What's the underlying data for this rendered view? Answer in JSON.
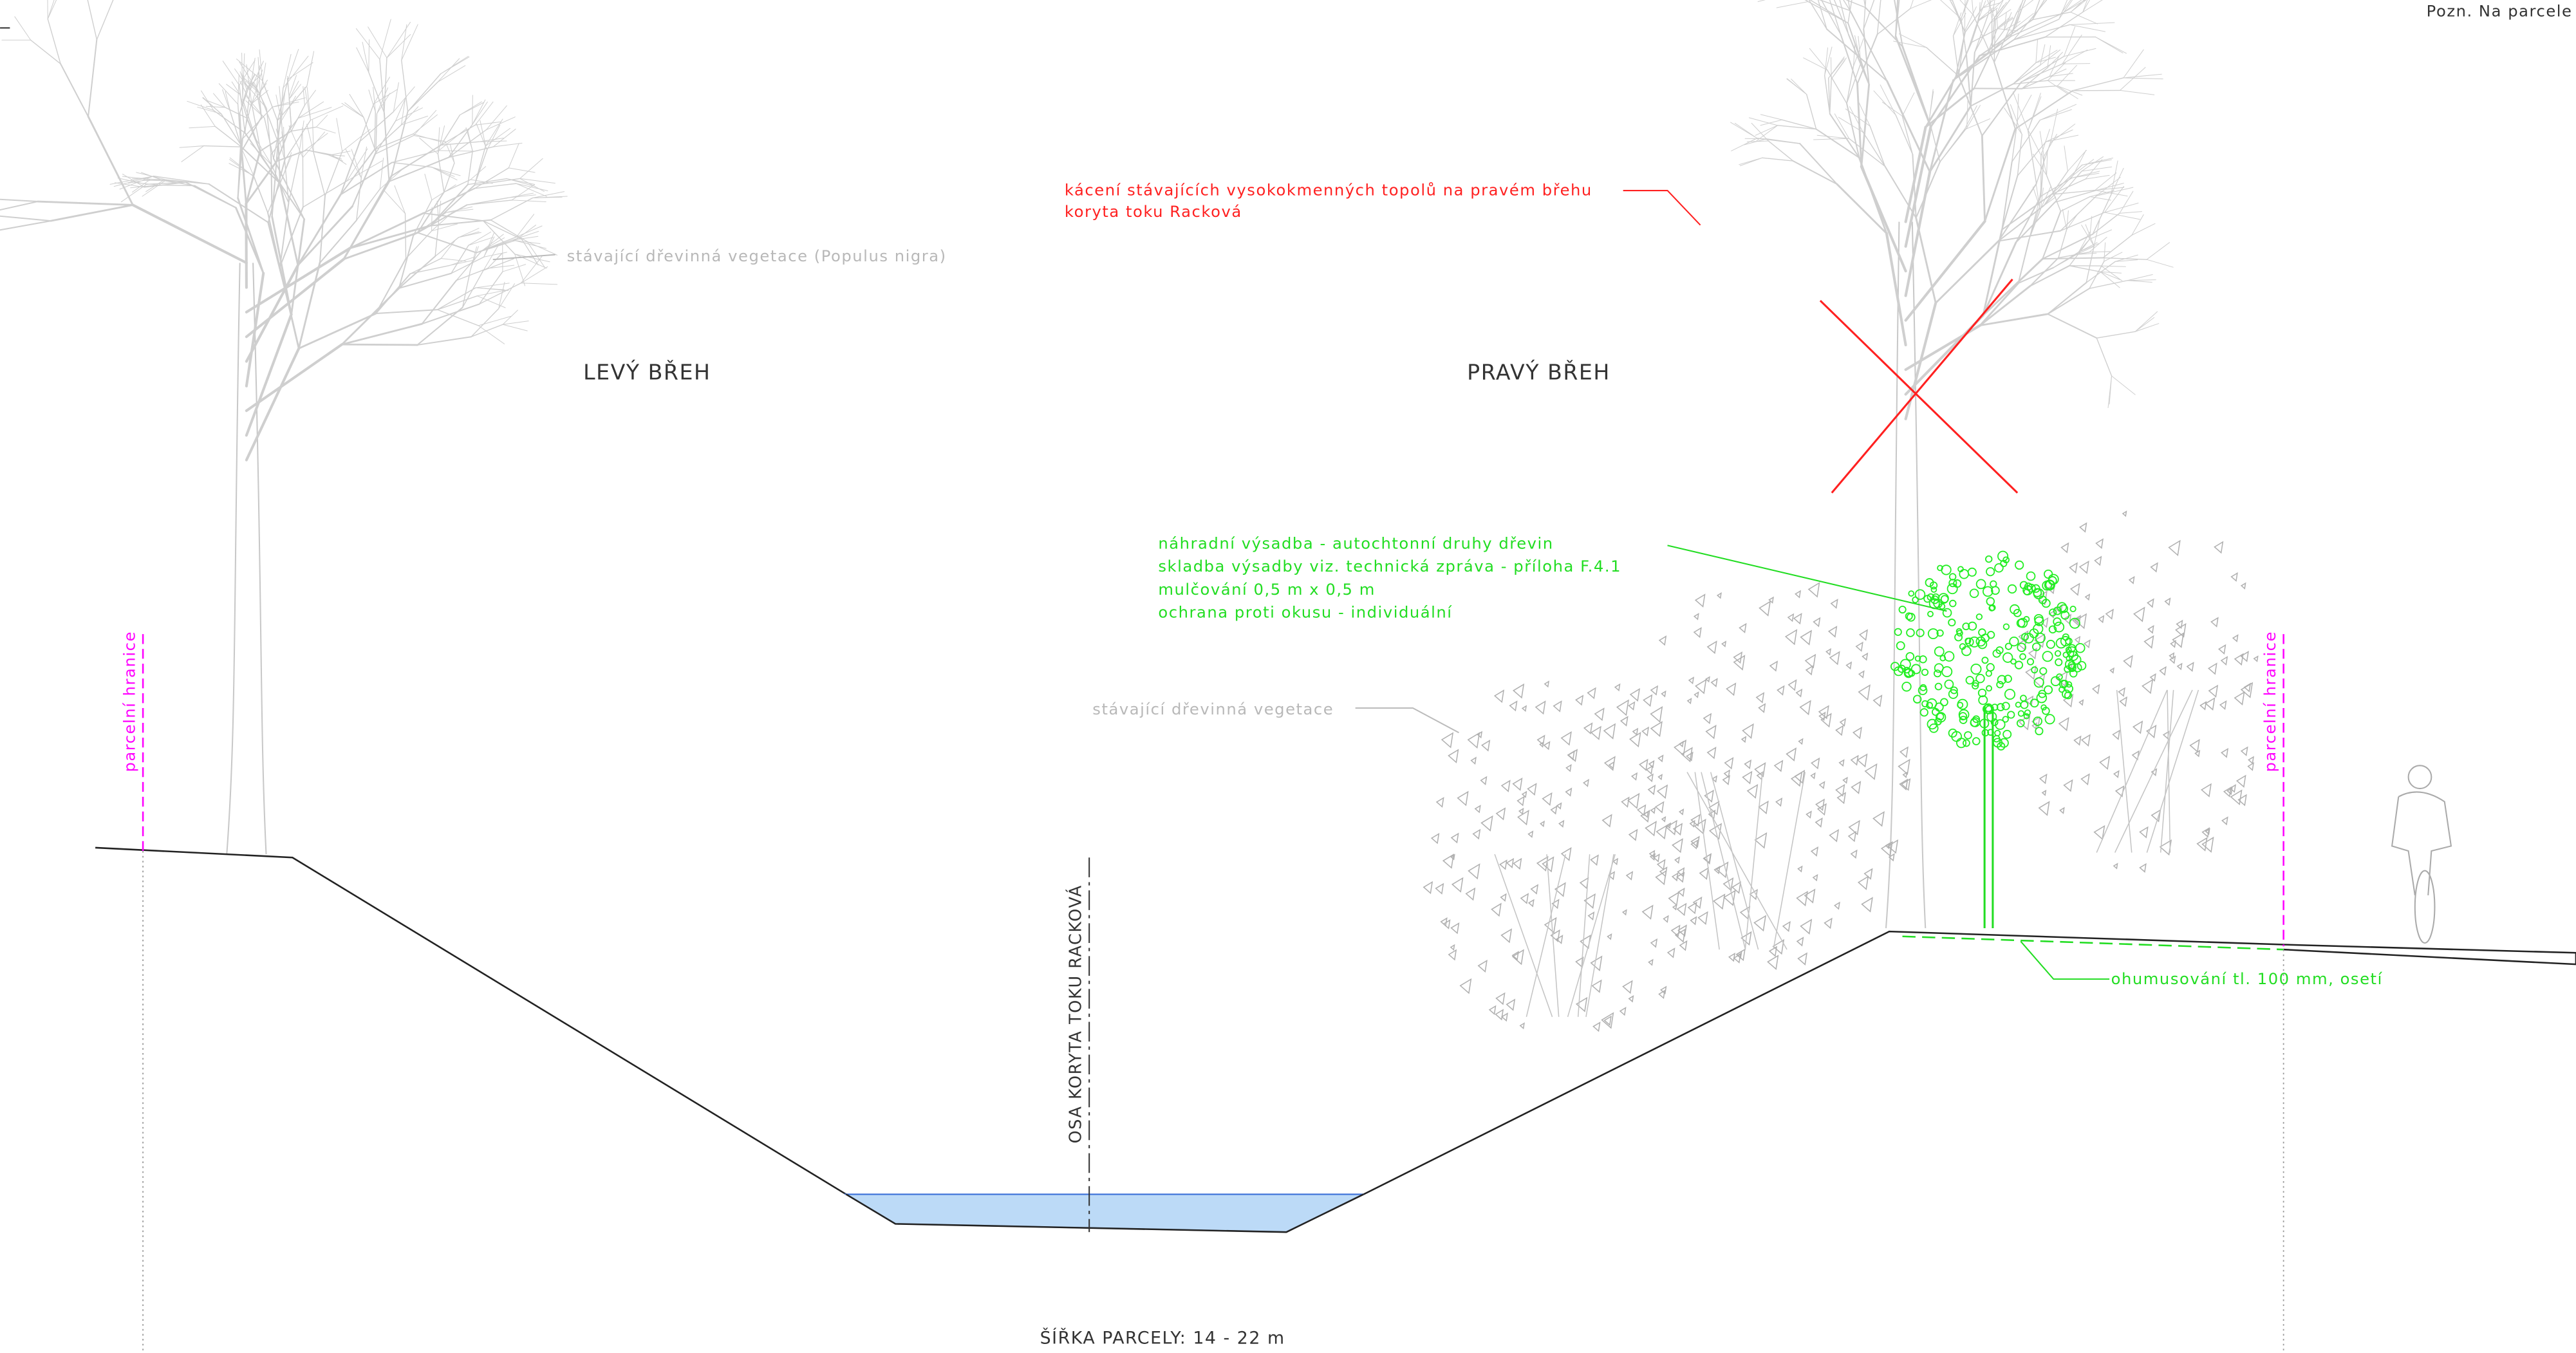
{
  "note": "Pozn. Na parcele",
  "labels": {
    "left_bank": "LEVÝ BŘEH",
    "right_bank": "PRAVÝ BŘEH",
    "existing_poplar": "stávající dřevinná vegetace (Populus nigra)",
    "existing_vegetation": "stávající dřevinná vegetace",
    "felling": [
      "kácení stávajících vysokokmenných topolů na pravém  břehu",
      "koryta toku Racková"
    ],
    "replanting": [
      "náhradní výsadba - autochtonní druhy dřevin",
      "skladba výsadby viz. technická zpráva - příloha F.4.1",
      "mulčování 0,5  m  x 0,5  m",
      "ochrana proti okusu - individuální"
    ],
    "topsoil": "ohumusování tl. 100  mm, osetí",
    "parcel_left": "parcelní hranice",
    "parcel_right": "parcelní hranice",
    "axis": "OSA KORYTA TOKU RACKOVÁ",
    "width": "ŠÍŘKA PARCELY: 14  -  22  m"
  }
}
